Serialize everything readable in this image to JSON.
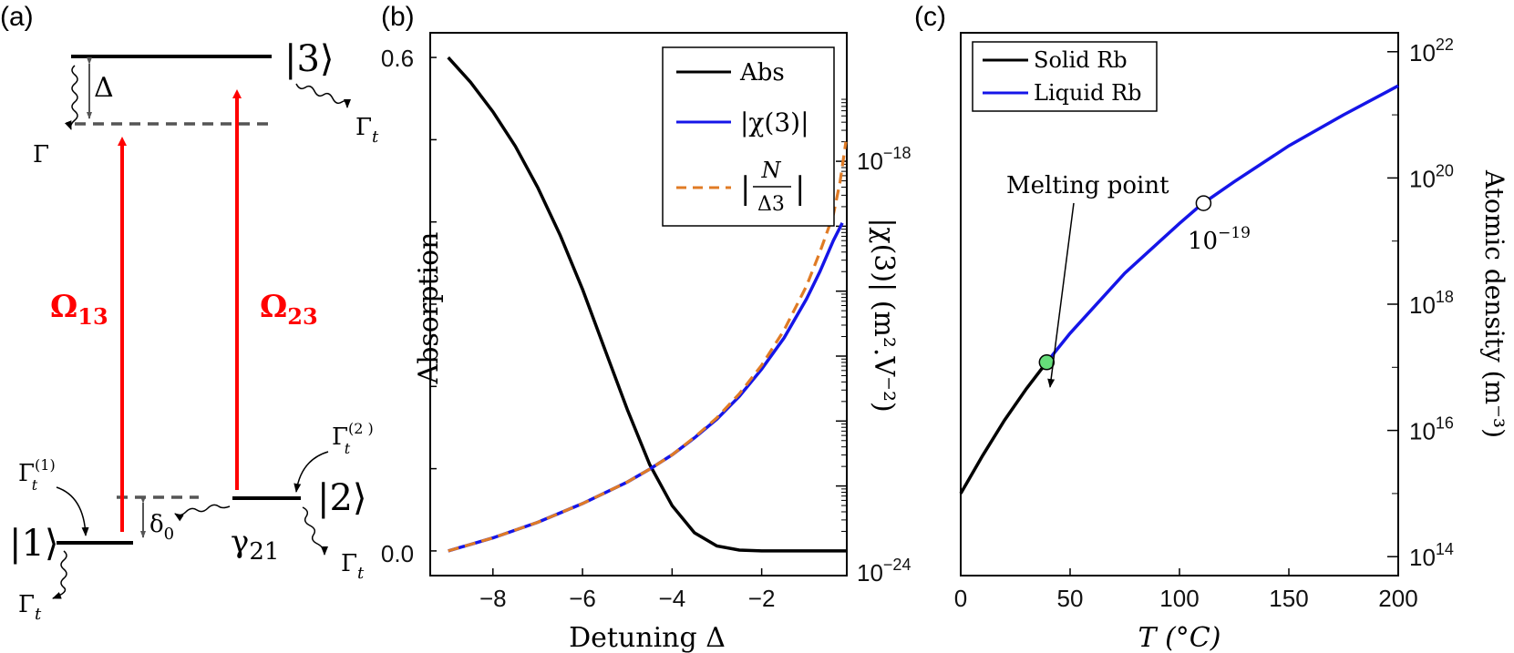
{
  "colors": {
    "black": "#000000",
    "blue": "#1515e8",
    "orange": "#e07b25",
    "red": "#ff0000",
    "gray": "#555555",
    "green": "#66dd7a"
  },
  "panels": {
    "a": {
      "label": "(a)",
      "states": {
        "s1": "|1⟩",
        "s2": "|2⟩",
        "s3": "|3⟩"
      },
      "delta": "Δ",
      "delta0": "δ",
      "delta0_sub": "0",
      "gamma_big": "Γ",
      "gamma_t": "Γ",
      "gamma_t_sub": "t",
      "gamma_t1_sup": "(1)",
      "gamma_t2_sup": "(2 )",
      "gamma21": "γ",
      "gamma21_sub": "21",
      "omega13": "Ω",
      "omega13_sub": "13",
      "omega23": "Ω",
      "omega23_sub": "23"
    },
    "b": {
      "label": "(b)",
      "xlabel": "Detuning Δ",
      "ylabel": "Absorption",
      "ylabel_right": "|χ(3)| (m².V⁻²)",
      "left_ticks": [
        "0.6",
        "0.0"
      ],
      "right_ticks": {
        "top_base": "10",
        "top_exp": "−18",
        "bottom_base": "10",
        "bottom_exp": "−24"
      },
      "x_ticks": [
        "−8",
        "−6",
        "−4",
        "−2"
      ],
      "legend": {
        "abs": "Abs",
        "chi": "|χ(3)|",
        "ratio_num": "N",
        "ratio_den": "Δ3"
      }
    },
    "c": {
      "label": "(c)",
      "xlabel": "T (°C)",
      "ylabel_right": "Atomic density (m⁻³)",
      "x_ticks": [
        "0",
        "50",
        "100",
        "150",
        "200"
      ],
      "y_ticks": [
        {
          "base": "10",
          "exp": "22"
        },
        {
          "base": "10",
          "exp": "20"
        },
        {
          "base": "10",
          "exp": "18"
        },
        {
          "base": "10",
          "exp": "16"
        },
        {
          "base": "10",
          "exp": "14"
        }
      ],
      "legend": {
        "solid": "Solid Rb",
        "liquid": "Liquid Rb"
      },
      "melting_label": "Melting point",
      "annot_base": "10",
      "annot_exp": "−19"
    }
  },
  "chart_data": [
    {
      "type": "line",
      "title": "",
      "xlabel": "Detuning Δ",
      "ylabel": "Absorption",
      "xlim": [
        -9.4,
        -0.1
      ],
      "ylim": [
        -0.03,
        0.63
      ],
      "y2_scale": "log",
      "y2lim_exp": [
        -24,
        -18
      ],
      "series": [
        {
          "name": "Abs",
          "axis": "left",
          "x": [
            -9,
            -8.5,
            -8,
            -7.5,
            -7,
            -6.5,
            -6,
            -5.5,
            -5,
            -4.5,
            -4,
            -3.5,
            -3,
            -2.5,
            -2,
            -1.5,
            -1,
            -0.5,
            -0.1
          ],
          "y": [
            0.6,
            0.57,
            0.534,
            0.492,
            0.442,
            0.384,
            0.318,
            0.245,
            0.172,
            0.105,
            0.055,
            0.022,
            0.006,
            0.001,
            0.0,
            0.0,
            0.0,
            0.0,
            0.0
          ]
        },
        {
          "name": "|χ(3)|",
          "axis": "right",
          "x": [
            -9,
            -8,
            -7,
            -6,
            -5,
            -4.5,
            -4,
            -3.5,
            -3,
            -2.5,
            -2,
            -1.5,
            -1,
            -0.7,
            -0.4,
            -0.2
          ],
          "y_log10": [
            -24.0,
            -23.8,
            -23.56,
            -23.27,
            -22.94,
            -22.74,
            -22.52,
            -22.26,
            -21.97,
            -21.62,
            -21.2,
            -20.72,
            -20.12,
            -19.7,
            -19.22,
            -18.95
          ]
        },
        {
          "name": "|N/Δ3|",
          "axis": "right",
          "x": [
            -9,
            -8,
            -7,
            -6,
            -5,
            -4.5,
            -4,
            -3.5,
            -3,
            -2.5,
            -2,
            -1.5,
            -1,
            -0.7,
            -0.4,
            -0.25,
            -0.12
          ],
          "y_log10": [
            -24.0,
            -23.8,
            -23.56,
            -23.27,
            -22.94,
            -22.74,
            -22.52,
            -22.25,
            -21.95,
            -21.58,
            -21.14,
            -20.6,
            -19.92,
            -19.4,
            -18.82,
            -18.32,
            -17.7
          ]
        }
      ]
    },
    {
      "type": "line",
      "title": "",
      "xlabel": "T (°C)",
      "ylabel": "Atomic density (m⁻³)",
      "xlim": [
        0,
        200
      ],
      "y_scale": "log",
      "ylim_exp": [
        13.7,
        22.3
      ],
      "series": [
        {
          "name": "Solid Rb",
          "x": [
            0,
            10,
            20,
            30,
            39.3
          ],
          "y_log10": [
            15.0,
            15.6,
            16.16,
            16.66,
            17.08
          ]
        },
        {
          "name": "Liquid Rb",
          "x": [
            39.3,
            50,
            75,
            100,
            110,
            125,
            150,
            175,
            200
          ],
          "y_log10": [
            17.08,
            17.54,
            18.49,
            19.28,
            19.58,
            19.94,
            20.51,
            21.0,
            21.46
          ]
        }
      ],
      "points": [
        {
          "label": "Melting point",
          "x": 39.3,
          "y_log10": 17.08
        },
        {
          "label": "10−19",
          "x": 111,
          "y_log10": 19.6
        }
      ]
    }
  ]
}
